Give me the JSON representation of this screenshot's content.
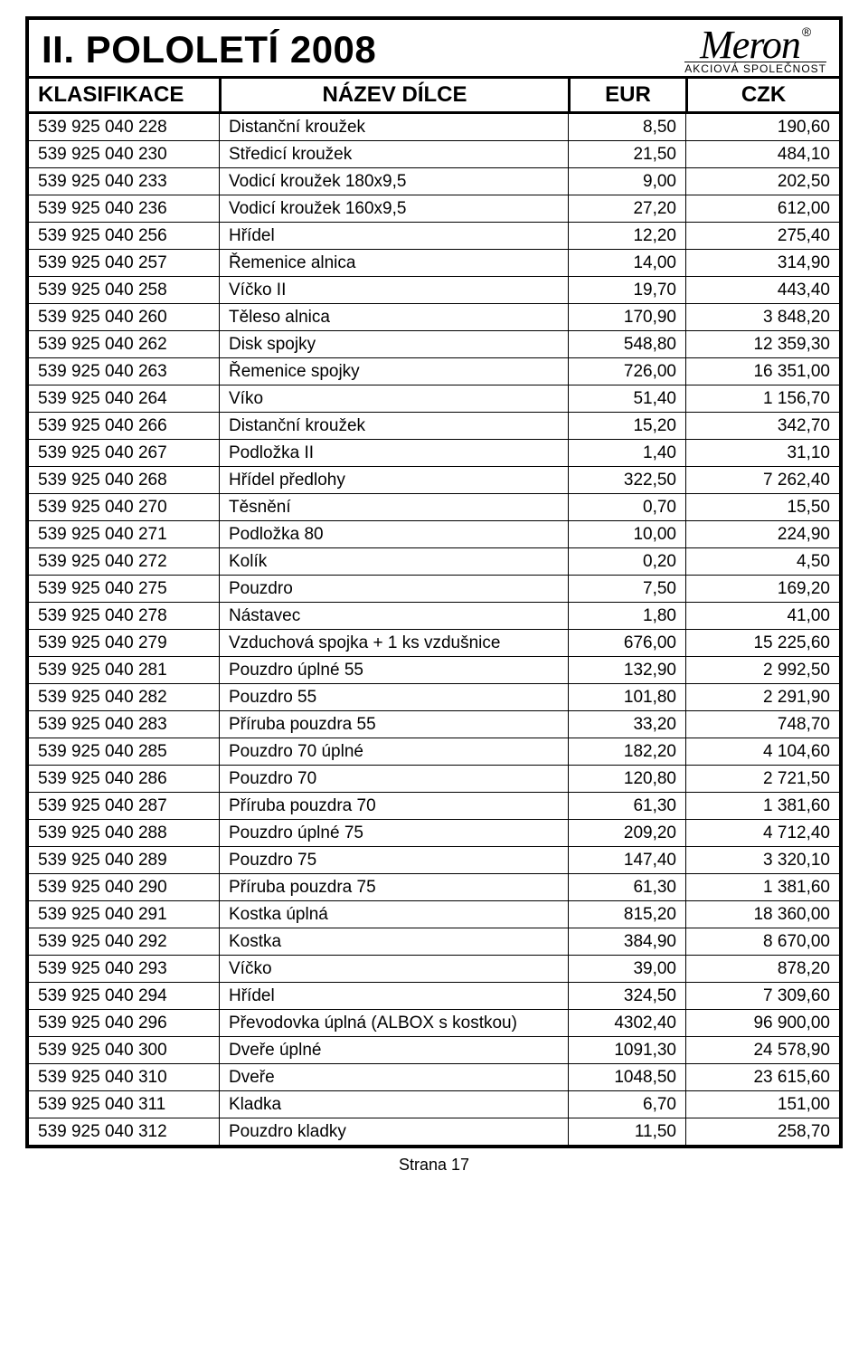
{
  "title": "II. POLOLETÍ 2008",
  "logo": {
    "main": "Meron",
    "reg": "®",
    "sub": "AKCIOVÁ SPOLEČNOST"
  },
  "columns": {
    "klasifikace": "KLASIFIKACE",
    "nazev": "NÁZEV DÍLCE",
    "eur": "EUR",
    "czk": "CZK"
  },
  "rows": [
    {
      "k": "539 925 040 228",
      "n": "Distanční kroužek",
      "e": "8,50",
      "c": "190,60"
    },
    {
      "k": "539 925 040 230",
      "n": "Středicí kroužek",
      "e": "21,50",
      "c": "484,10"
    },
    {
      "k": "539 925 040 233",
      "n": "Vodicí kroužek 180x9,5",
      "e": "9,00",
      "c": "202,50"
    },
    {
      "k": "539 925 040 236",
      "n": "Vodicí kroužek 160x9,5",
      "e": "27,20",
      "c": "612,00"
    },
    {
      "k": "539 925 040 256",
      "n": "Hřídel",
      "e": "12,20",
      "c": "275,40"
    },
    {
      "k": "539 925 040 257",
      "n": "Řemenice alnica",
      "e": "14,00",
      "c": "314,90"
    },
    {
      "k": "539 925 040 258",
      "n": "Víčko II",
      "e": "19,70",
      "c": "443,40"
    },
    {
      "k": "539 925 040 260",
      "n": "Těleso alnica",
      "e": "170,90",
      "c": "3 848,20"
    },
    {
      "k": "539 925 040 262",
      "n": "Disk spojky",
      "e": "548,80",
      "c": "12 359,30"
    },
    {
      "k": "539 925 040 263",
      "n": "Řemenice spojky",
      "e": "726,00",
      "c": "16 351,00"
    },
    {
      "k": "539 925 040 264",
      "n": "Víko",
      "e": "51,40",
      "c": "1 156,70"
    },
    {
      "k": "539 925 040 266",
      "n": "Distanční kroužek",
      "e": "15,20",
      "c": "342,70"
    },
    {
      "k": "539 925 040 267",
      "n": "Podložka II",
      "e": "1,40",
      "c": "31,10"
    },
    {
      "k": "539 925 040 268",
      "n": "Hřídel předlohy",
      "e": "322,50",
      "c": "7 262,40"
    },
    {
      "k": "539 925 040 270",
      "n": "Těsnění",
      "e": "0,70",
      "c": "15,50"
    },
    {
      "k": "539 925 040 271",
      "n": "Podložka 80",
      "e": "10,00",
      "c": "224,90"
    },
    {
      "k": "539 925 040 272",
      "n": "Kolík",
      "e": "0,20",
      "c": "4,50"
    },
    {
      "k": "539 925 040 275",
      "n": "Pouzdro",
      "e": "7,50",
      "c": "169,20"
    },
    {
      "k": "539 925 040 278",
      "n": "Nástavec",
      "e": "1,80",
      "c": "41,00"
    },
    {
      "k": "539 925 040 279",
      "n": "Vzduchová spojka + 1 ks vzdušnice",
      "e": "676,00",
      "c": "15 225,60"
    },
    {
      "k": "539 925 040 281",
      "n": "Pouzdro  úplné 55",
      "e": "132,90",
      "c": "2 992,50"
    },
    {
      "k": "539 925 040 282",
      "n": "Pouzdro 55",
      "e": "101,80",
      "c": "2 291,90"
    },
    {
      "k": "539 925 040 283",
      "n": "Příruba pouzdra 55",
      "e": "33,20",
      "c": "748,70"
    },
    {
      "k": "539 925 040 285",
      "n": "Pouzdro 70 úplné",
      "e": "182,20",
      "c": "4 104,60"
    },
    {
      "k": "539 925 040 286",
      "n": "Pouzdro 70",
      "e": "120,80",
      "c": "2 721,50"
    },
    {
      "k": "539 925 040 287",
      "n": "Příruba pouzdra 70",
      "e": "61,30",
      "c": "1 381,60"
    },
    {
      "k": "539 925 040 288",
      "n": "Pouzdro úplné 75",
      "e": "209,20",
      "c": "4 712,40"
    },
    {
      "k": "539 925 040 289",
      "n": "Pouzdro 75",
      "e": "147,40",
      "c": "3 320,10"
    },
    {
      "k": "539 925 040 290",
      "n": "Příruba pouzdra 75",
      "e": "61,30",
      "c": "1 381,60"
    },
    {
      "k": "539 925 040 291",
      "n": "Kostka úplná",
      "e": "815,20",
      "c": "18 360,00"
    },
    {
      "k": "539 925 040 292",
      "n": "Kostka",
      "e": "384,90",
      "c": "8 670,00"
    },
    {
      "k": "539 925 040 293",
      "n": "Víčko",
      "e": "39,00",
      "c": "878,20"
    },
    {
      "k": "539 925 040 294",
      "n": "Hřídel",
      "e": "324,50",
      "c": "7 309,60"
    },
    {
      "k": "539 925 040 296",
      "n": "Převodovka úplná (ALBOX s kostkou)",
      "e": "4302,40",
      "c": "96 900,00"
    },
    {
      "k": "539 925 040 300",
      "n": "Dveře úplné",
      "e": "1091,30",
      "c": "24 578,90"
    },
    {
      "k": "539 925 040 310",
      "n": "Dveře",
      "e": "1048,50",
      "c": "23 615,60"
    },
    {
      "k": "539 925 040 311",
      "n": "Kladka",
      "e": "6,70",
      "c": "151,00"
    },
    {
      "k": "539 925 040 312",
      "n": "Pouzdro kladky",
      "e": "11,50",
      "c": "258,70"
    }
  ],
  "footer": "Strana 17",
  "colors": {
    "border": "#000000",
    "text": "#000000",
    "bg": "#ffffff"
  }
}
